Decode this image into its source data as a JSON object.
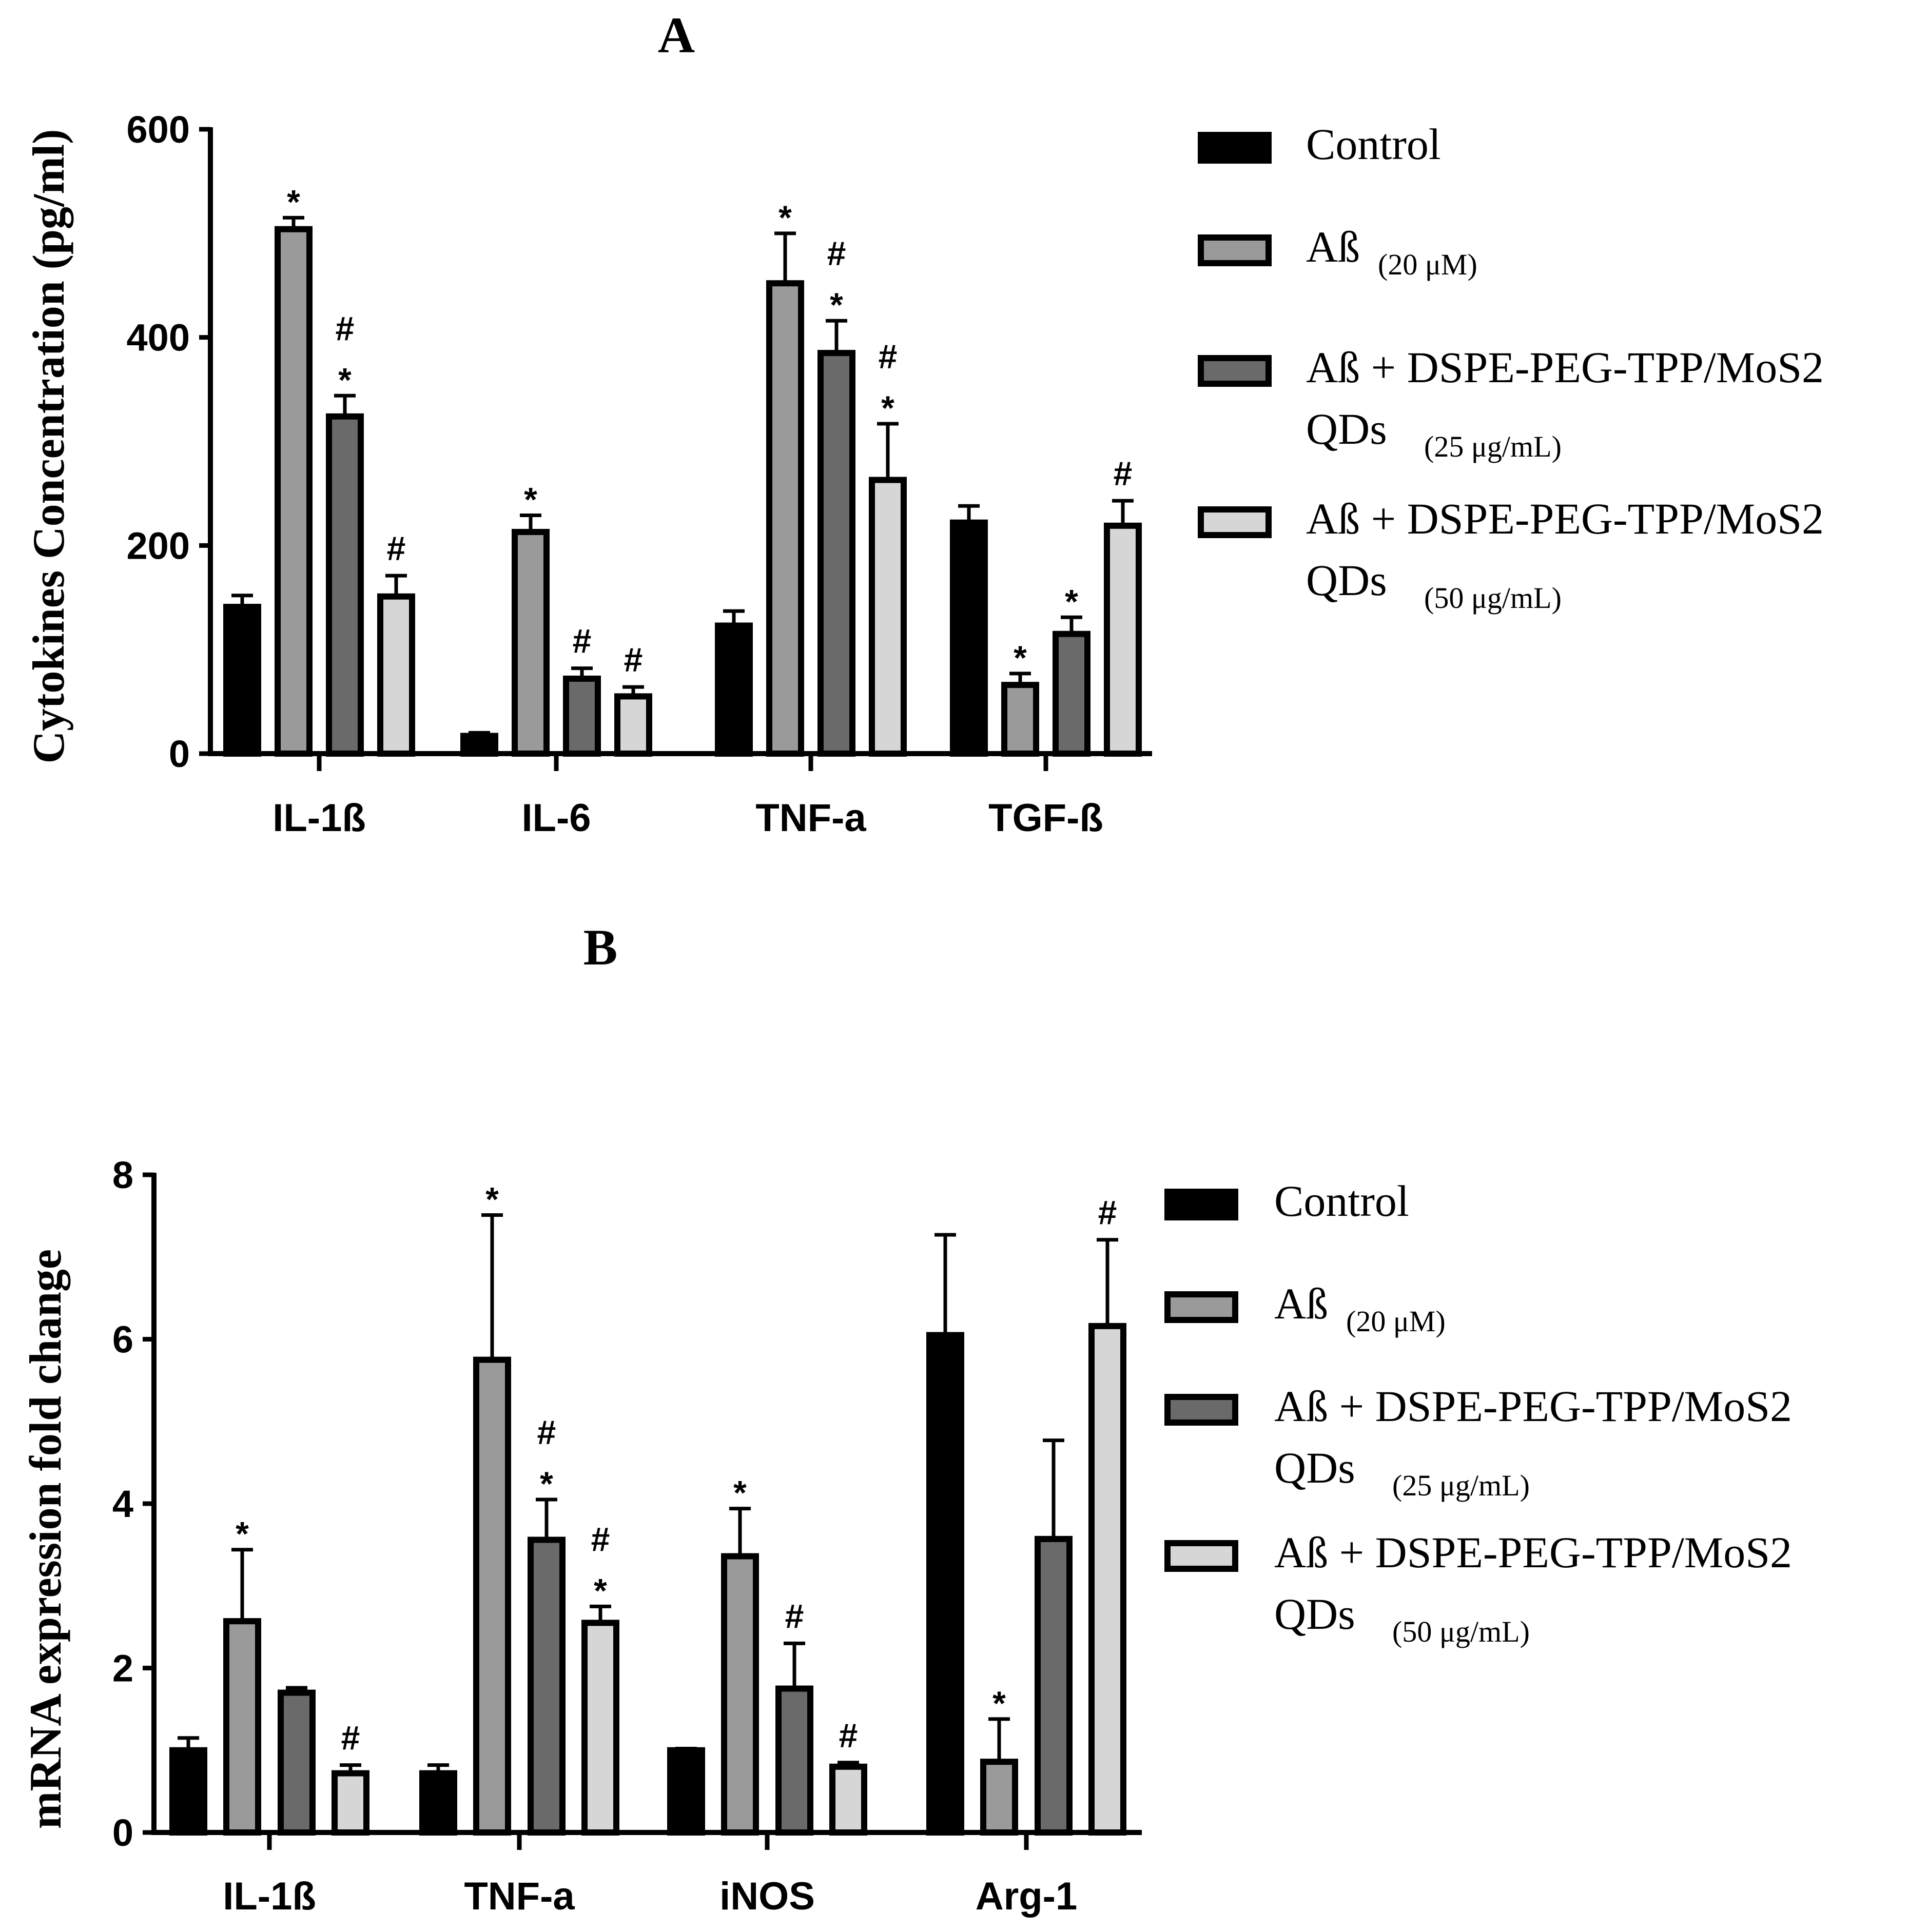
{
  "colors": {
    "control": "#000000",
    "ab20": "#9a9a9a",
    "qd25": "#6a6a6a",
    "qd50": "#d6d6d6",
    "stroke": "#000000"
  },
  "chart_data": [
    {
      "type": "bar",
      "panel": "A",
      "title": "A",
      "ylabel": "Cytokines Concentration (pg/ml)",
      "xlabel": "",
      "ylim": [
        0,
        600
      ],
      "yticks": [
        "0",
        "200",
        "400",
        "600"
      ],
      "categories": [
        "IL-1ß",
        "IL-6",
        "TNF-a",
        "TGF-ß"
      ],
      "series": [
        {
          "name": "Control",
          "color_key": "control",
          "values": [
            141,
            17,
            123,
            222
          ],
          "errors": [
            11,
            3,
            14,
            16
          ],
          "marks": [
            "",
            "",
            "",
            ""
          ]
        },
        {
          "name": "Aß (20 μM)",
          "color_key": "ab20",
          "values": [
            504,
            213,
            452,
            66
          ],
          "errors": [
            11,
            16,
            48,
            11
          ],
          "marks": [
            "*",
            "*",
            "*",
            "*"
          ]
        },
        {
          "name": "Aß + DSPE-PEG-TPP/MoS2 QDs (25 μg/mL)",
          "color_key": "qd25",
          "values": [
            324,
            72,
            385,
            115
          ],
          "errors": [
            20,
            10,
            31,
            16
          ],
          "marks": [
            "#*",
            "#",
            "#*",
            "*"
          ]
        },
        {
          "name": "Aß + DSPE-PEG-TPP/MoS2 QDs (50 μg/mL)",
          "color_key": "qd50",
          "values": [
            151,
            55,
            263,
            219
          ],
          "errors": [
            20,
            9,
            54,
            24
          ],
          "marks": [
            "#",
            "#",
            "#*",
            "#"
          ]
        }
      ],
      "legend": {
        "placement": "right",
        "items": [
          {
            "main": "Control",
            "line2": "",
            "sub": ""
          },
          {
            "main": "Aß",
            "line2": "",
            "sub": "(20 μM)"
          },
          {
            "main": "Aß + DSPE-PEG-TPP/MoS2",
            "line2": "QDs",
            "sub": "(25 μg/mL)"
          },
          {
            "main": "Aß + DSPE-PEG-TPP/MoS2",
            "line2": "QDs",
            "sub": "(50 μg/mL)"
          }
        ]
      }
    },
    {
      "type": "bar",
      "panel": "B",
      "title": "B",
      "ylabel": "mRNA expression fold change",
      "xlabel": "",
      "ylim": [
        0,
        8
      ],
      "yticks": [
        "0",
        "2",
        "4",
        "6",
        "8"
      ],
      "categories": [
        "IL-1ß",
        "TNF-a",
        "iNOS",
        "Arg-1"
      ],
      "series": [
        {
          "name": "Control",
          "color_key": "control",
          "values": [
            1.0,
            0.72,
            1.0,
            6.05
          ],
          "errors": [
            0.15,
            0.1,
            0.02,
            1.22
          ],
          "marks": [
            "",
            "",
            "",
            ""
          ]
        },
        {
          "name": "Aß (20 μM)",
          "color_key": "ab20",
          "values": [
            2.57,
            5.75,
            3.36,
            0.86
          ],
          "errors": [
            0.87,
            1.76,
            0.58,
            0.52
          ],
          "marks": [
            "*",
            "*",
            "*",
            "*"
          ]
        },
        {
          "name": "Aß + DSPE-PEG-TPP/MoS2 QDs (25 μg/mL)",
          "color_key": "qd25",
          "values": [
            1.7,
            3.56,
            1.75,
            3.57
          ],
          "errors": [
            0.06,
            0.49,
            0.55,
            1.2
          ],
          "marks": [
            "",
            "#*",
            "#",
            ""
          ]
        },
        {
          "name": "Aß + DSPE-PEG-TPP/MoS2 QDs (50 μg/mL)",
          "color_key": "qd50",
          "values": [
            0.72,
            2.55,
            0.8,
            6.16
          ],
          "errors": [
            0.1,
            0.2,
            0.05,
            1.05
          ],
          "marks": [
            "#",
            "#*",
            "#",
            "#"
          ]
        }
      ],
      "legend": {
        "placement": "right",
        "items": [
          {
            "main": "Control",
            "line2": "",
            "sub": ""
          },
          {
            "main": "Aß",
            "line2": "",
            "sub": "(20 μM)"
          },
          {
            "main": "Aß + DSPE-PEG-TPP/MoS2",
            "line2": "QDs",
            "sub": "(25 μg/mL)"
          },
          {
            "main": "Aß + DSPE-PEG-TPP/MoS2",
            "line2": "QDs",
            "sub": "(50 μg/mL)"
          }
        ]
      }
    }
  ]
}
